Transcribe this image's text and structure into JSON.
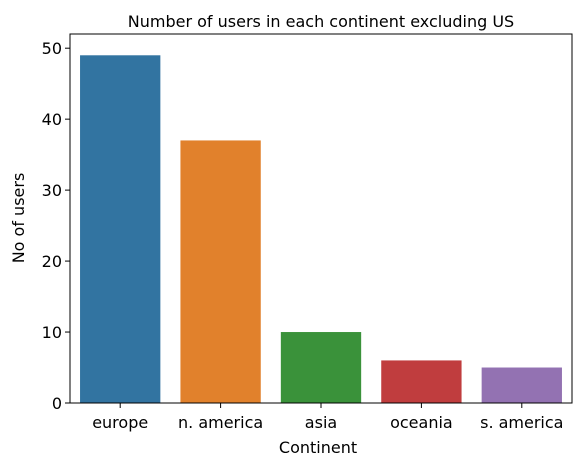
{
  "chart_data": {
    "type": "bar",
    "title": "Number of users in each continent excluding US",
    "xlabel": "Continent",
    "ylabel": "No of users",
    "categories": [
      "europe",
      "n. america",
      "asia",
      "oceania",
      "s. america"
    ],
    "values": [
      49,
      37,
      10,
      6,
      5
    ],
    "colors": [
      "#3274a1",
      "#e1812c",
      "#3a923a",
      "#c03d3e",
      "#9372b2"
    ],
    "ylim": [
      0,
      52
    ],
    "yticks": [
      0,
      10,
      20,
      30,
      40,
      50
    ],
    "grid": false,
    "legend": "none"
  }
}
